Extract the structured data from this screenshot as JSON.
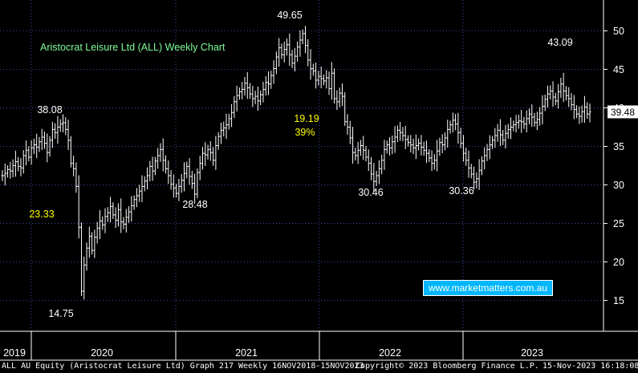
{
  "chart_data": {
    "type": "bar",
    "subtype": "weekly-ohlc",
    "title": "Aristocrat Leisure Ltd (ALL) Weekly Chart",
    "ylim": [
      11,
      54
    ],
    "y_ticks": [
      15,
      20,
      25,
      30,
      35,
      40,
      45,
      50
    ],
    "x_labels": [
      "2019",
      "2020",
      "2021",
      "2022",
      "2023"
    ],
    "grid": true,
    "last_price": "39.48",
    "annotations": [
      {
        "text": "38.08",
        "color": "#ffffff"
      },
      {
        "text": "49.65",
        "color": "#ffffff"
      },
      {
        "text": "23.33",
        "color": "#ffff00"
      },
      {
        "text": "14.75",
        "color": "#ffffff"
      },
      {
        "text": "28.48",
        "color": "#ffffff"
      },
      {
        "text": "19.19",
        "color": "#ffff00"
      },
      {
        "text": "39%",
        "color": "#ffff00"
      },
      {
        "text": "30.46",
        "color": "#ffffff"
      },
      {
        "text": "30.36",
        "color": "#ffffff"
      },
      {
        "text": "43.09",
        "color": "#ffffff"
      }
    ],
    "series": [
      {
        "values": [
          31.2,
          31.5,
          32,
          31.8,
          32.5,
          33,
          32.4,
          32.2,
          33.8,
          34.5,
          33.6,
          34.8,
          35.2,
          34.9,
          35.6,
          36.2,
          35.4,
          34.2,
          35.8,
          37.2,
          36.8,
          37.5,
          37.9,
          38.08,
          37.2,
          35.8,
          32.8,
          32.1,
          29.8,
          24.5,
          16.2,
          19.6,
          21.8,
          23.33,
          21.5,
          23.2,
          24.4,
          25.3,
          24.8,
          25.9,
          26.4,
          27.2,
          26.1,
          25.4,
          26.8,
          25.2,
          24.9,
          25.8,
          26.5,
          27.3,
          28.1,
          28.6,
          29.2,
          29.8,
          30.5,
          31.2,
          32.4,
          31.8,
          33.1,
          33.8,
          34.6,
          33.2,
          32.1,
          31.2,
          30.1,
          29.6,
          28.9,
          29.8,
          30.6,
          31.5,
          32.4,
          31.1,
          30.2,
          28.8,
          31.6,
          32.8,
          34.1,
          33.9,
          34.6,
          34.2,
          33.2,
          35.1,
          36.3,
          37.1,
          37.4,
          37.8,
          38.6,
          39.4,
          40.8,
          41.6,
          42.1,
          42.4,
          43.2,
          42.6,
          41.8,
          41.2,
          41.5,
          40.9,
          41.7,
          42.4,
          43.3,
          43.1,
          44.2,
          45.1,
          46.6,
          47.8,
          46.9,
          47.6,
          48.2,
          46.9,
          45.8,
          46.7,
          47.9,
          48.8,
          49.65,
          48.1,
          46.2,
          45.1,
          44.8,
          43.6,
          44.1,
          43.8,
          43.5,
          43.9,
          42.5,
          44.5,
          41.2,
          40.8,
          41.9,
          41.5,
          38.2,
          37.5,
          36.1,
          34.2,
          33.8,
          34.5,
          35.1,
          34.5,
          33.6,
          32.8,
          31.4,
          30.46,
          31.2,
          32.1,
          33.2,
          34.6,
          35.2,
          34.8,
          35.6,
          36.2,
          37.1,
          36.8,
          36.4,
          35.9,
          35.5,
          35.2,
          34.8,
          35.1,
          35.4,
          34.9,
          34.5,
          34.1,
          33.5,
          32.8,
          33.2,
          34.4,
          35.5,
          35.2,
          36.1,
          37.2,
          37.8,
          38.4,
          37.9,
          36.8,
          35.4,
          34.1,
          33.2,
          32.2,
          31.4,
          30.36,
          30.8,
          31.9,
          33.1,
          33.8,
          34.6,
          35.2,
          35.8,
          36.4,
          37.1,
          36.5,
          35.8,
          36.7,
          37.2,
          37.5,
          37.8,
          38.1,
          38.3,
          38.2,
          37.9,
          38.6,
          39.2,
          38.8,
          38.1,
          38.5,
          39.3,
          40.2,
          41.1,
          41.8,
          42.2,
          41.4,
          40.9,
          42.1,
          43.09,
          42.2,
          41.6,
          41.2,
          40.4,
          39.8,
          39.2,
          38.9,
          39.5,
          40.1,
          39.2,
          39.48
        ]
      }
    ]
  },
  "watermark": "www.marketmatters.com.au",
  "footer": {
    "left": "ALL AU Equity (Aristocrat Leisure Ltd) Graph 217  Weekly 16NOV2018-15NOV2023",
    "center": "Copyright© 2023 Bloomberg Finance L.P.",
    "right": "15-Nov-2023 16:18:08"
  },
  "colors": {
    "background": "#000000",
    "bars": "#ffffff",
    "grid": "#3a4ea0",
    "title": "#7cfc9a",
    "highlight": "#ffff00",
    "watermark_bg": "#00b7ff"
  }
}
